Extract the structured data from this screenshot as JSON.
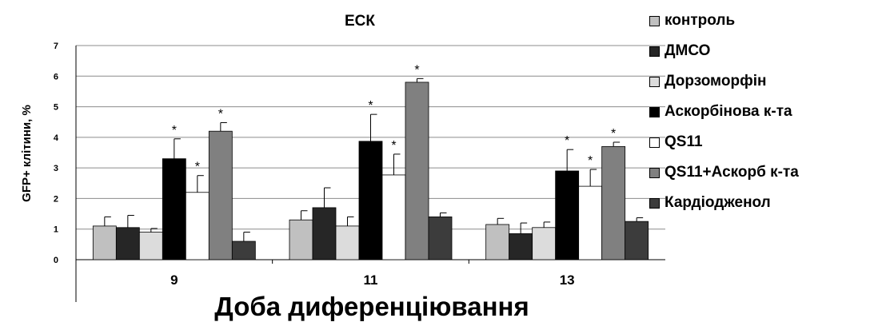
{
  "chart_data": {
    "type": "bar",
    "title": "ЕСК",
    "xlabel": "Доба диференціювання",
    "ylabel": "GFP+ клітини, %",
    "ylim": [
      0,
      7
    ],
    "yticks": [
      "0",
      "1",
      "2",
      "3",
      "4",
      "5",
      "6",
      "7"
    ],
    "grid": true,
    "legend_position": "right",
    "categories": [
      "9",
      "11",
      "13"
    ],
    "significance_marker": "*",
    "series": [
      {
        "name": "контроль",
        "color": "#c0c0c0",
        "values": [
          1.1,
          1.3,
          1.15
        ],
        "errors": [
          0.3,
          0.3,
          0.2
        ],
        "significant": [
          false,
          false,
          false
        ]
      },
      {
        "name": "ДМСО",
        "color": "#262626",
        "values": [
          1.05,
          1.7,
          0.85
        ],
        "errors": [
          0.4,
          0.65,
          0.35
        ],
        "significant": [
          false,
          false,
          false
        ]
      },
      {
        "name": "Дорзоморфін",
        "color": "#dcdcdc",
        "values": [
          0.9,
          1.1,
          1.05
        ],
        "errors": [
          0.12,
          0.3,
          0.18
        ],
        "significant": [
          false,
          false,
          false
        ]
      },
      {
        "name": "Аскорбінова к-та",
        "color": "#000000",
        "values": [
          3.3,
          3.87,
          2.9
        ],
        "errors": [
          0.65,
          0.88,
          0.7
        ],
        "significant": [
          true,
          true,
          true
        ]
      },
      {
        "name": "QS11",
        "color": "#ffffff",
        "values": [
          2.2,
          2.77,
          2.4
        ],
        "errors": [
          0.55,
          0.68,
          0.55
        ],
        "significant": [
          true,
          true,
          true
        ]
      },
      {
        "name": "QS11+Аскорб к-та",
        "color": "#808080",
        "values": [
          4.2,
          5.8,
          3.7
        ],
        "errors": [
          0.28,
          0.12,
          0.14
        ],
        "significant": [
          true,
          true,
          true
        ]
      },
      {
        "name": "Кардіодженол",
        "color": "#3c3c3c",
        "values": [
          0.6,
          1.4,
          1.25
        ],
        "errors": [
          0.3,
          0.13,
          0.12
        ],
        "significant": [
          false,
          false,
          false
        ]
      }
    ]
  }
}
